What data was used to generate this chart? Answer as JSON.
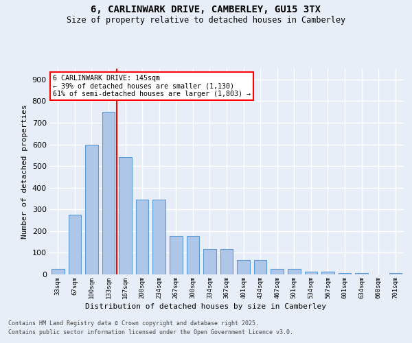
{
  "title": "6, CARLINWARK DRIVE, CAMBERLEY, GU15 3TX",
  "subtitle": "Size of property relative to detached houses in Camberley",
  "xlabel": "Distribution of detached houses by size in Camberley",
  "ylabel": "Number of detached properties",
  "categories": [
    "33sqm",
    "67sqm",
    "100sqm",
    "133sqm",
    "167sqm",
    "200sqm",
    "234sqm",
    "267sqm",
    "300sqm",
    "334sqm",
    "367sqm",
    "401sqm",
    "434sqm",
    "467sqm",
    "501sqm",
    "534sqm",
    "567sqm",
    "601sqm",
    "634sqm",
    "668sqm",
    "701sqm"
  ],
  "values": [
    25,
    275,
    600,
    750,
    540,
    345,
    345,
    178,
    178,
    118,
    118,
    65,
    65,
    25,
    25,
    12,
    12,
    5,
    5,
    0,
    5
  ],
  "bar_color": "#aec6e8",
  "bar_edge_color": "#5b9bd5",
  "highlight_color": "#ff0000",
  "red_line_x": 3.5,
  "annotation_line1": "6 CARLINWARK DRIVE: 145sqm",
  "annotation_line2": "← 39% of detached houses are smaller (1,130)",
  "annotation_line3": "61% of semi-detached houses are larger (1,803) →",
  "ylim": [
    0,
    950
  ],
  "yticks": [
    0,
    100,
    200,
    300,
    400,
    500,
    600,
    700,
    800,
    900
  ],
  "background_color": "#e8eef8",
  "grid_color": "#ffffff",
  "footer_line1": "Contains HM Land Registry data © Crown copyright and database right 2025.",
  "footer_line2": "Contains public sector information licensed under the Open Government Licence v3.0."
}
